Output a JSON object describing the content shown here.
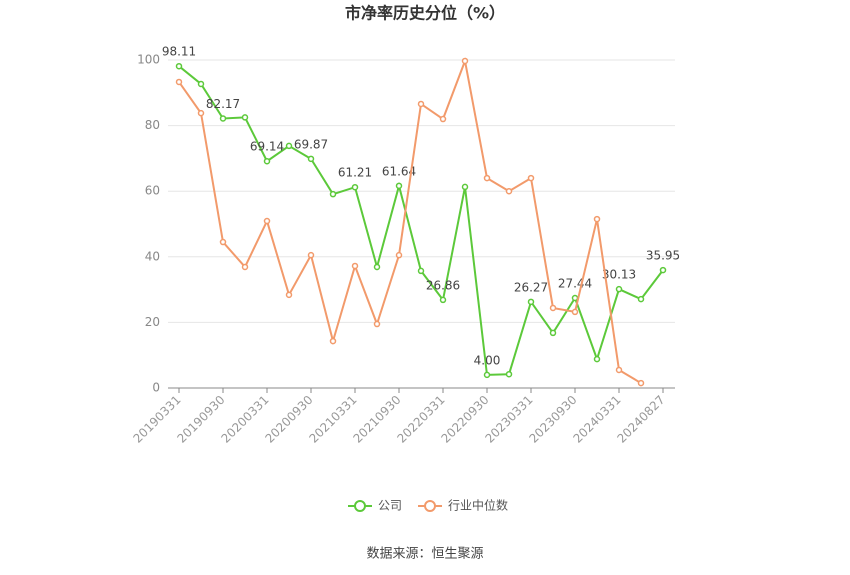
{
  "chart_data": {
    "type": "line",
    "title": "市净率历史分位（%）",
    "categories": [
      "20190331",
      null,
      "20190930",
      null,
      "20200331",
      null,
      "20200930",
      null,
      "20210331",
      null,
      "20210930",
      null,
      "20220331",
      null,
      "20220930",
      null,
      "20230331",
      null,
      "20230930",
      null,
      "20240331",
      null,
      "20240827"
    ],
    "series": [
      {
        "name": "公司",
        "color": "#5cc93a",
        "values": [
          98.11,
          92.7,
          82.17,
          82.5,
          69.14,
          73.8,
          69.87,
          59.1,
          61.21,
          36.9,
          61.64,
          35.7,
          26.86,
          61.3,
          4.0,
          4.2,
          26.27,
          16.8,
          27.44,
          8.8,
          30.13,
          27.1,
          35.95
        ],
        "value_labels": [
          "98.11",
          null,
          "82.17",
          null,
          "69.14",
          null,
          "69.87",
          null,
          "61.21",
          null,
          "61.64",
          null,
          "26.86",
          null,
          "4.00",
          null,
          "26.27",
          null,
          "27.44",
          null,
          "30.13",
          null,
          "35.95"
        ]
      },
      {
        "name": "行业中位数",
        "color": "#f29a6b",
        "values": [
          93.3,
          83.8,
          44.5,
          36.9,
          50.9,
          28.4,
          40.5,
          14.3,
          37.2,
          19.5,
          40.5,
          86.6,
          82,
          99.7,
          64,
          60,
          64,
          24.4,
          23.2,
          51.5,
          5.5,
          1.5,
          null
        ]
      }
    ],
    "ylim": [
      0,
      100
    ],
    "yticks": [
      0,
      20,
      40,
      60,
      80,
      100
    ],
    "grid": true,
    "legend": "bottom",
    "source": "数据来源：恒生聚源"
  }
}
